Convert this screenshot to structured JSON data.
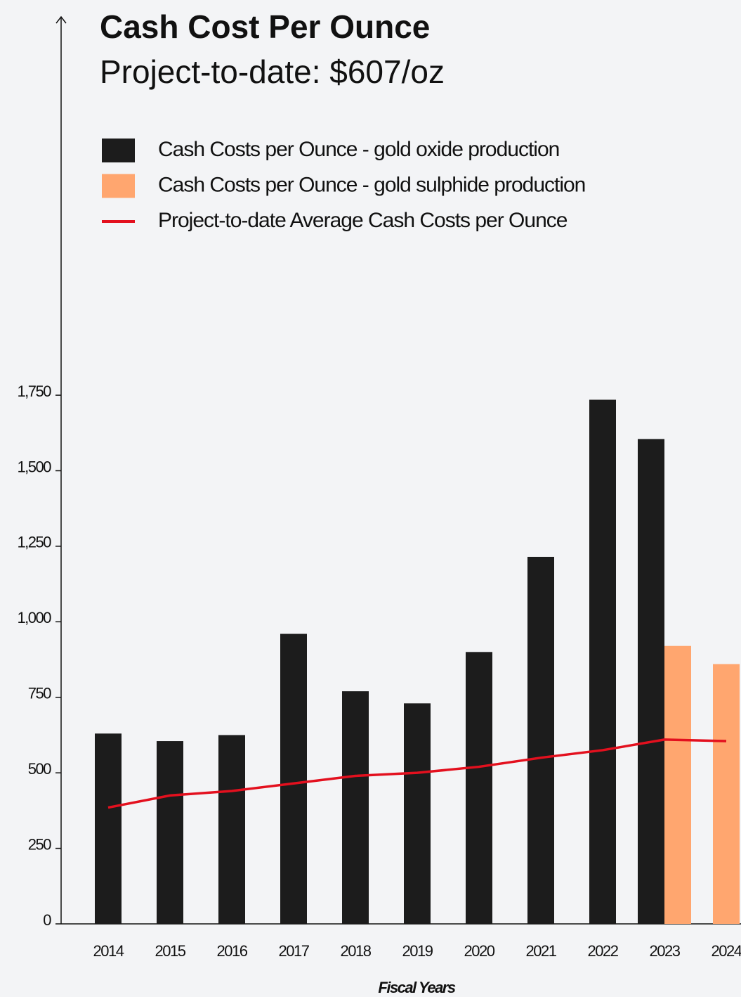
{
  "chart_data": {
    "type": "bar",
    "title": "Cash Cost Per Ounce",
    "subtitle": "Project-to-date: $607/oz",
    "x_label": "Fiscal Years",
    "categories": [
      "2014",
      "2015",
      "2016",
      "2017",
      "2018",
      "2019",
      "2020",
      "2021",
      "2022",
      "2023",
      "2024"
    ],
    "series": [
      {
        "name": "Cash Costs per Ounce - gold oxide production",
        "type": "bar",
        "color": "#1c1c1c",
        "values": [
          630,
          605,
          625,
          960,
          770,
          730,
          900,
          1215,
          1735,
          1605,
          null
        ]
      },
      {
        "name": "Cash Costs per Ounce - gold sulphide production",
        "type": "bar",
        "color": "#ffa66f",
        "values": [
          null,
          null,
          null,
          null,
          null,
          null,
          null,
          null,
          null,
          920,
          860
        ]
      },
      {
        "name": "Project-to-date Average Cash Costs per Ounce",
        "type": "line",
        "color": "#e3101e",
        "values": [
          385,
          425,
          440,
          465,
          490,
          500,
          520,
          550,
          575,
          610,
          605
        ]
      }
    ],
    "ylim": [
      0,
      3000
    ],
    "yticks": [
      0,
      250,
      500,
      750,
      {
        "value": 1000,
        "label": "1,000"
      },
      {
        "value": 1250,
        "label": "1,250"
      },
      {
        "value": 1500,
        "label": "1,500"
      },
      {
        "value": 1750,
        "label": "1,750"
      }
    ],
    "grid": false
  }
}
